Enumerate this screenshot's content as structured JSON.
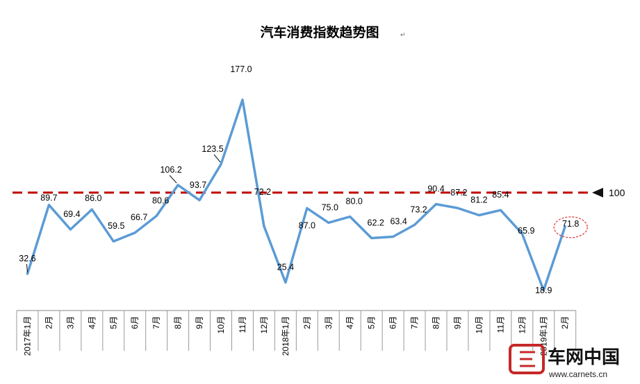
{
  "chart_data": {
    "type": "line",
    "title": "汽车消费指数趋势图",
    "title_mark": "↵",
    "categories": [
      "2017年1月",
      "2月",
      "3月",
      "4月",
      "5月",
      "6月",
      "7月",
      "8月",
      "9月",
      "10月",
      "11月",
      "12月",
      "2018年1月",
      "2月",
      "3月",
      "4月",
      "5月",
      "6月",
      "7月",
      "8月",
      "9月",
      "10月",
      "11月",
      "12月",
      "2019年1月",
      "2月"
    ],
    "series": [
      {
        "values": [
          32.6,
          89.7,
          69.4,
          86.0,
          59.5,
          66.7,
          80.6,
          106.2,
          93.7,
          123.5,
          177.0,
          72.2,
          25.4,
          87.0,
          75.0,
          80.0,
          62.2,
          63.4,
          73.2,
          90.4,
          87.2,
          81.2,
          85.4,
          65.9,
          18.9,
          71.8
        ]
      }
    ],
    "data_labels": [
      "32.6",
      "89.7",
      "69.4",
      "86.0",
      "59.5",
      "66.7",
      "80.6",
      "106.2",
      "93.7",
      "123.5",
      "177.0",
      "72.2",
      "25.4",
      "87.0",
      "75.0",
      "80.0",
      "62.2",
      "63.4",
      "73.2",
      "90.4",
      "87.2",
      "81.2",
      "85.4",
      "65.9",
      "18.9",
      "71.8"
    ],
    "reference_line": {
      "value": 100,
      "label": "100",
      "color": "#c00000"
    },
    "highlight_index": 25,
    "line_color": "#5b9bd5",
    "highlight_color": "#e03030",
    "ylim": [
      5,
      182
    ]
  },
  "watermark": {
    "brand": "车网中国",
    "url": "www.carnets.cn"
  }
}
